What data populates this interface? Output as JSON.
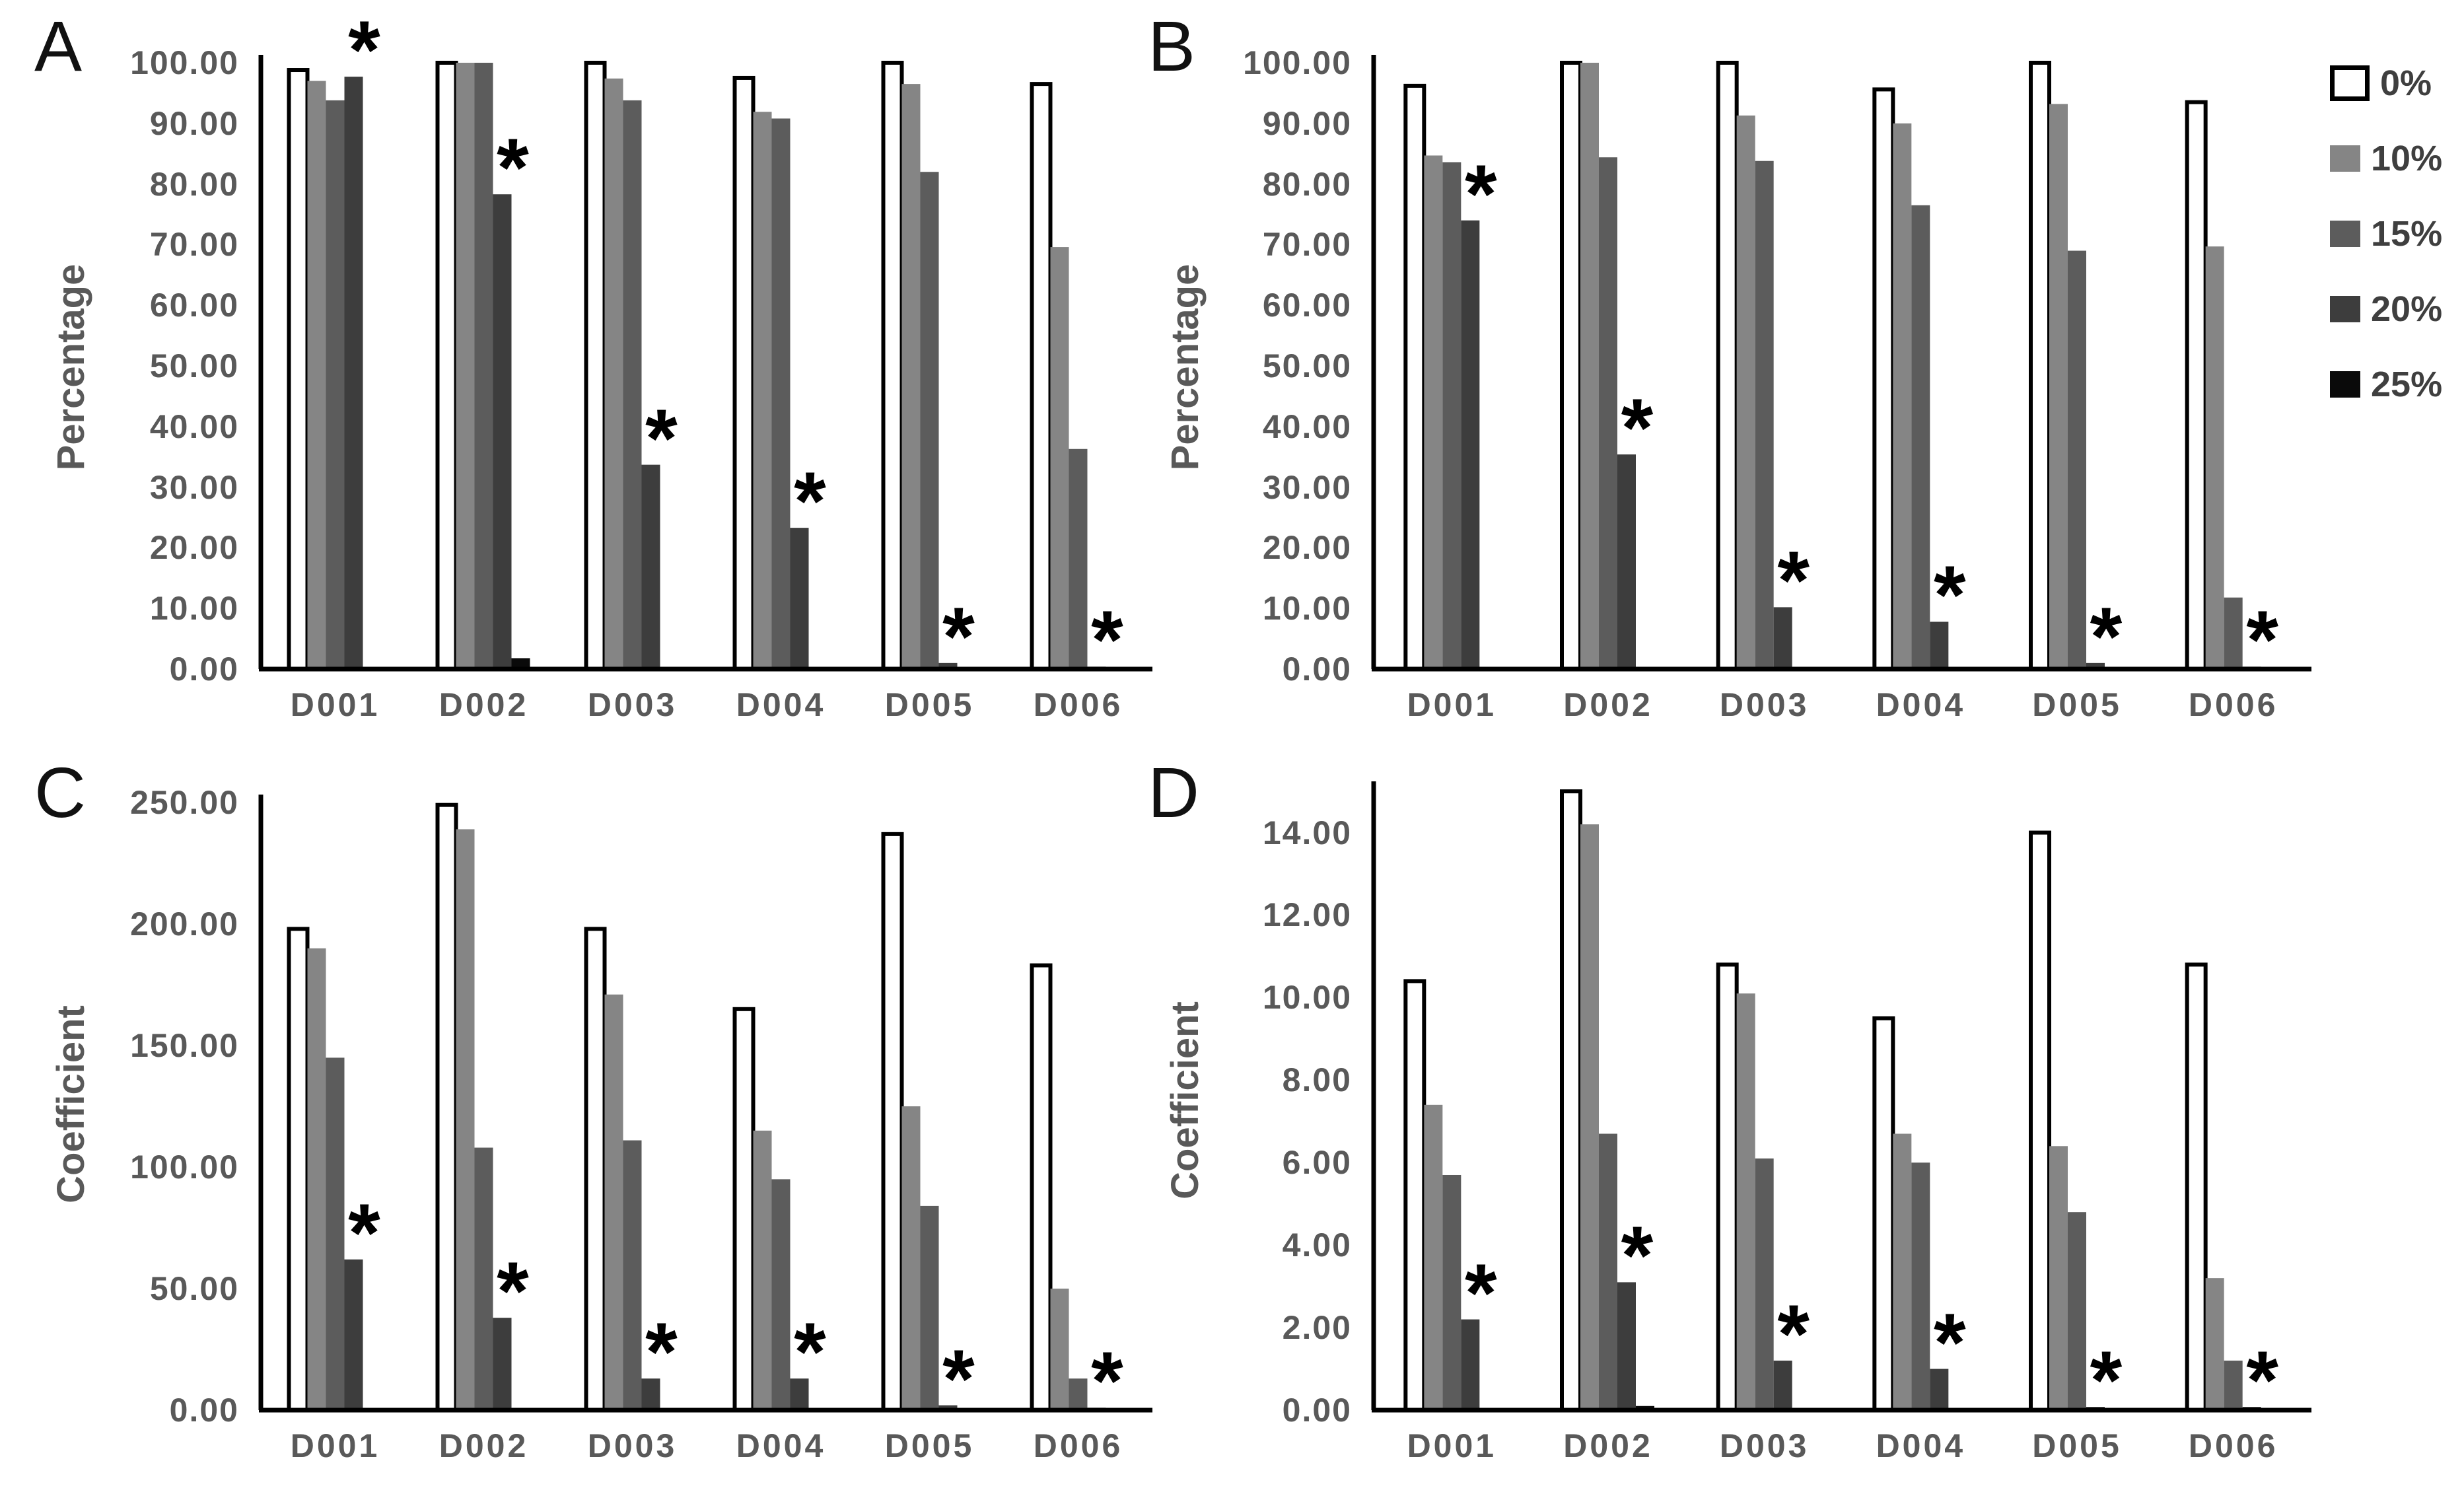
{
  "figure": {
    "background": "#ffffff",
    "significance_marker": "*",
    "panel_letters": [
      "A",
      "B",
      "C",
      "D"
    ]
  },
  "legend": {
    "position": "top-right",
    "entries": [
      {
        "label": "0%",
        "color": "#ffffff",
        "border": "#000000"
      },
      {
        "label": "10%",
        "color": "#858585",
        "border": null
      },
      {
        "label": "15%",
        "color": "#5c5c5c",
        "border": null
      },
      {
        "label": "20%",
        "color": "#3d3d3d",
        "border": null
      },
      {
        "label": "25%",
        "color": "#0a0a0a",
        "border": null
      }
    ]
  },
  "chart_data": [
    {
      "panel": "A",
      "type": "bar",
      "ylabel": "Percentage",
      "xlabel": "",
      "ylim": [
        0,
        100
      ],
      "grid": false,
      "yticks": [
        "0.00",
        "10.00",
        "20.00",
        "30.00",
        "40.00",
        "50.00",
        "60.00",
        "70.00",
        "80.00",
        "90.00",
        "100.00"
      ],
      "categories": [
        "D001",
        "D002",
        "D003",
        "D004",
        "D005",
        "D006"
      ],
      "series": [
        {
          "name": "0%",
          "values": [
            98.8,
            100.0,
            100.0,
            97.5,
            100.0,
            96.5
          ]
        },
        {
          "name": "10%",
          "values": [
            97.0,
            100.0,
            97.4,
            91.9,
            96.5,
            69.6
          ]
        },
        {
          "name": "15%",
          "values": [
            93.8,
            100.0,
            93.8,
            90.8,
            82.0,
            36.3
          ]
        },
        {
          "name": "20%",
          "values": [
            97.7,
            78.3,
            33.7,
            23.3,
            1.0,
            0.4
          ]
        },
        {
          "name": "25%",
          "values": [
            0,
            1.8,
            0,
            0,
            0,
            0
          ]
        }
      ],
      "significance": {
        "marker": "*",
        "series": "20%",
        "categories": [
          "D001",
          "D002",
          "D003",
          "D004",
          "D005",
          "D006"
        ]
      }
    },
    {
      "panel": "B",
      "type": "bar",
      "ylabel": "Percentage",
      "xlabel": "",
      "ylim": [
        0,
        100
      ],
      "grid": false,
      "yticks": [
        "0.00",
        "10.00",
        "20.00",
        "30.00",
        "40.00",
        "50.00",
        "60.00",
        "70.00",
        "80.00",
        "90.00",
        "100.00"
      ],
      "categories": [
        "D001",
        "D002",
        "D003",
        "D004",
        "D005",
        "D006"
      ],
      "series": [
        {
          "name": "0%",
          "values": [
            96.2,
            100.0,
            100.0,
            95.6,
            100.0,
            93.5
          ]
        },
        {
          "name": "10%",
          "values": [
            84.7,
            100.0,
            91.3,
            90.0,
            93.2,
            69.7
          ]
        },
        {
          "name": "15%",
          "values": [
            83.6,
            84.4,
            83.8,
            76.5,
            69.0,
            11.8
          ]
        },
        {
          "name": "20%",
          "values": [
            74.0,
            35.4,
            10.2,
            7.8,
            1.0,
            0.4
          ]
        },
        {
          "name": "25%",
          "values": [
            0,
            0,
            0,
            0,
            0,
            0
          ]
        }
      ],
      "significance": {
        "marker": "*",
        "series": "20%",
        "categories": [
          "D001",
          "D002",
          "D003",
          "D004",
          "D005",
          "D006"
        ]
      }
    },
    {
      "panel": "C",
      "type": "bar",
      "ylabel": "Coefficient",
      "xlabel": "",
      "ylim": [
        0,
        250
      ],
      "grid": false,
      "yticks": [
        "0.00",
        "50.00",
        "100.00",
        "150.00",
        "200.00",
        "250.00"
      ],
      "categories": [
        "D001",
        "D002",
        "D003",
        "D004",
        "D005",
        "D006"
      ],
      "series": [
        {
          "name": "0%",
          "values": [
            198,
            249,
            198,
            165,
            237,
            183
          ]
        },
        {
          "name": "10%",
          "values": [
            190,
            239,
            171,
            115,
            125,
            50
          ]
        },
        {
          "name": "15%",
          "values": [
            145,
            108,
            111,
            95,
            84,
            13
          ]
        },
        {
          "name": "20%",
          "values": [
            62,
            38,
            13,
            13,
            2,
            1
          ]
        },
        {
          "name": "25%",
          "values": [
            0,
            0,
            0,
            0,
            0,
            0
          ]
        }
      ],
      "significance": {
        "marker": "*",
        "series": "20%",
        "categories": [
          "D001",
          "D002",
          "D003",
          "D004",
          "D005",
          "D006"
        ]
      }
    },
    {
      "panel": "D",
      "type": "bar",
      "ylabel": "Coefficient",
      "xlabel": "",
      "ylim": [
        0,
        15.05
      ],
      "grid": false,
      "yticks": [
        "0.00",
        "2.00",
        "4.00",
        "6.00",
        "8.00",
        "10.00",
        "12.00",
        "14.00"
      ],
      "categories": [
        "D001",
        "D002",
        "D003",
        "D004",
        "D005",
        "D006"
      ],
      "series": [
        {
          "name": "0%",
          "values": [
            10.4,
            15.0,
            10.8,
            9.5,
            14.0,
            10.8
          ]
        },
        {
          "name": "10%",
          "values": [
            7.4,
            14.2,
            10.1,
            6.7,
            6.4,
            3.2
          ]
        },
        {
          "name": "15%",
          "values": [
            5.7,
            6.7,
            6.1,
            6.0,
            4.8,
            1.2
          ]
        },
        {
          "name": "20%",
          "values": [
            2.2,
            3.1,
            1.2,
            1.0,
            0.08,
            0.08
          ]
        },
        {
          "name": "25%",
          "values": [
            0,
            0.1,
            0,
            0,
            0,
            0
          ]
        }
      ],
      "significance": {
        "marker": "*",
        "series": "20%",
        "categories": [
          "D001",
          "D002",
          "D003",
          "D004",
          "D005",
          "D006"
        ]
      }
    }
  ]
}
